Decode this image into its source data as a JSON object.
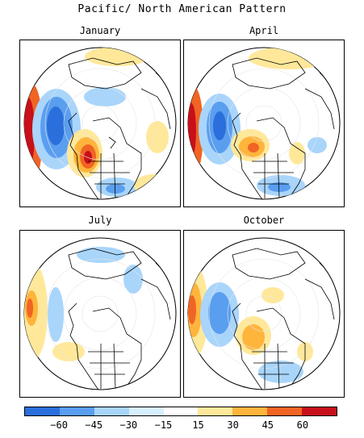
{
  "title": "Pacific/ North American Pattern",
  "panels": [
    {
      "label": "January"
    },
    {
      "label": "April"
    },
    {
      "label": "July"
    },
    {
      "label": "October"
    }
  ],
  "colorbar": {
    "colors": [
      "#2a6fdb",
      "#5a9ef0",
      "#a9d5fb",
      "#d7f0ff",
      "#ffffff",
      "#ffe89a",
      "#ffb43c",
      "#f06424",
      "#c8101a"
    ],
    "ticks": [
      "−60",
      "−45",
      "−30",
      "−15",
      "15",
      "30",
      "45",
      "60"
    ]
  }
}
